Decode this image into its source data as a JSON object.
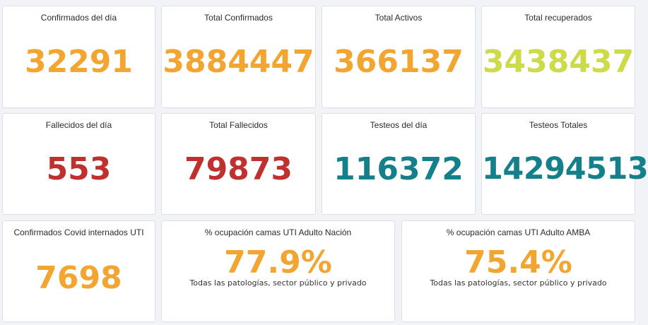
{
  "colors": {
    "orange": "#f3a531",
    "lime": "#cddb4a",
    "red": "#c0302e",
    "teal": "#14808a"
  },
  "cards": [
    {
      "title": "Confirmados del día",
      "value": "32291",
      "color": "orange"
    },
    {
      "title": "Total Confirmados",
      "value": "3884447",
      "color": "orange"
    },
    {
      "title": "Total Activos",
      "value": "366137",
      "color": "orange"
    },
    {
      "title": "Total recuperados",
      "value": "3438437",
      "color": "lime"
    },
    {
      "title": "Fallecidos del día",
      "value": "553",
      "color": "red"
    },
    {
      "title": "Total Fallecidos",
      "value": "79873",
      "color": "red"
    },
    {
      "title": "Testeos del día",
      "value": "116372",
      "color": "teal"
    },
    {
      "title": "Testeos Totales",
      "value": "14294513",
      "color": "teal"
    },
    {
      "title": "Confirmados Covid internados UTI",
      "value": "7698",
      "color": "orange"
    },
    {
      "title": "% ocupación camas UTI Adulto Nación",
      "value": "77.9%",
      "subtitle": "Todas las patologías, sector público y privado",
      "color": "orange"
    },
    {
      "title": "% ocupación camas UTI Adulto AMBA",
      "value": "75.4%",
      "subtitle": "Todas las patologías, sector público y privado",
      "color": "orange"
    }
  ]
}
